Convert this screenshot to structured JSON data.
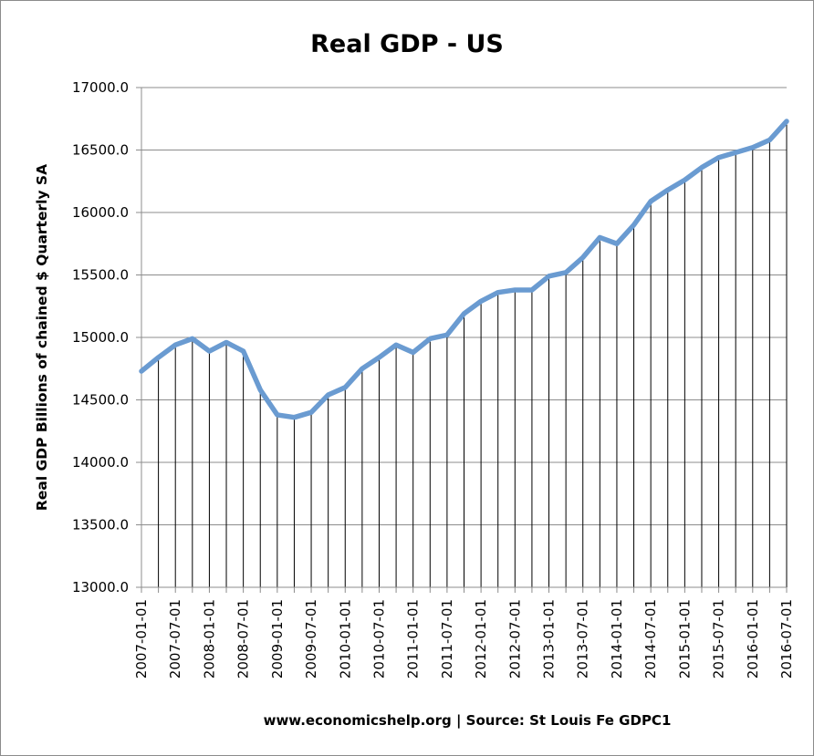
{
  "chart_data": {
    "type": "line",
    "title": "Real GDP - US",
    "ylabel": "Real GDP  Billions of chained $ Quarterly SA",
    "xlabel": "",
    "source_note": "www.economicshelp.org | Source: St Louis Fe GDPC1",
    "ylim": [
      13000,
      17000
    ],
    "ytick_step": 500,
    "y_ticks": [
      "13000.0",
      "13500.0",
      "14000.0",
      "14500.0",
      "15000.0",
      "15500.0",
      "16000.0",
      "16500.0",
      "17000.0"
    ],
    "x": [
      "2007-01-01",
      "2007-04-01",
      "2007-07-01",
      "2007-10-01",
      "2008-01-01",
      "2008-04-01",
      "2008-07-01",
      "2008-10-01",
      "2009-01-01",
      "2009-04-01",
      "2009-07-01",
      "2009-10-01",
      "2010-01-01",
      "2010-04-01",
      "2010-07-01",
      "2010-10-01",
      "2011-01-01",
      "2011-04-01",
      "2011-07-01",
      "2011-10-01",
      "2012-01-01",
      "2012-04-01",
      "2012-07-01",
      "2012-10-01",
      "2013-01-01",
      "2013-04-01",
      "2013-07-01",
      "2013-10-01",
      "2014-01-01",
      "2014-04-01",
      "2014-07-01",
      "2014-10-01",
      "2015-01-01",
      "2015-04-01",
      "2015-07-01",
      "2015-10-01",
      "2016-01-01",
      "2016-04-01",
      "2016-07-01"
    ],
    "x_tick_labels": [
      "2007-01-01",
      "2007-07-01",
      "2008-01-01",
      "2008-07-01",
      "2009-01-01",
      "2009-07-01",
      "2010-01-01",
      "2010-07-01",
      "2011-01-01",
      "2011-07-01",
      "2012-01-01",
      "2012-07-01",
      "2013-01-01",
      "2013-07-01",
      "2014-01-01",
      "2014-07-01",
      "2015-01-01",
      "2015-07-01",
      "2016-01-01",
      "2016-07-01"
    ],
    "values": [
      14730,
      14840,
      14940,
      14990,
      14890,
      14960,
      14890,
      14580,
      14380,
      14360,
      14400,
      14540,
      14600,
      14750,
      14840,
      14940,
      14880,
      14990,
      15020,
      15190,
      15290,
      15360,
      15380,
      15380,
      15490,
      15520,
      15640,
      15800,
      15750,
      15900,
      16090,
      16180,
      16260,
      16360,
      16440,
      16480,
      16520,
      16580,
      16730
    ],
    "drop_lines": true,
    "grid": "horizontal",
    "legend": "none",
    "colors": {
      "line": "#6a9bd1",
      "drop_line": "#000000",
      "grid": "#8c8c8c",
      "axis": "#8c8c8c"
    }
  }
}
